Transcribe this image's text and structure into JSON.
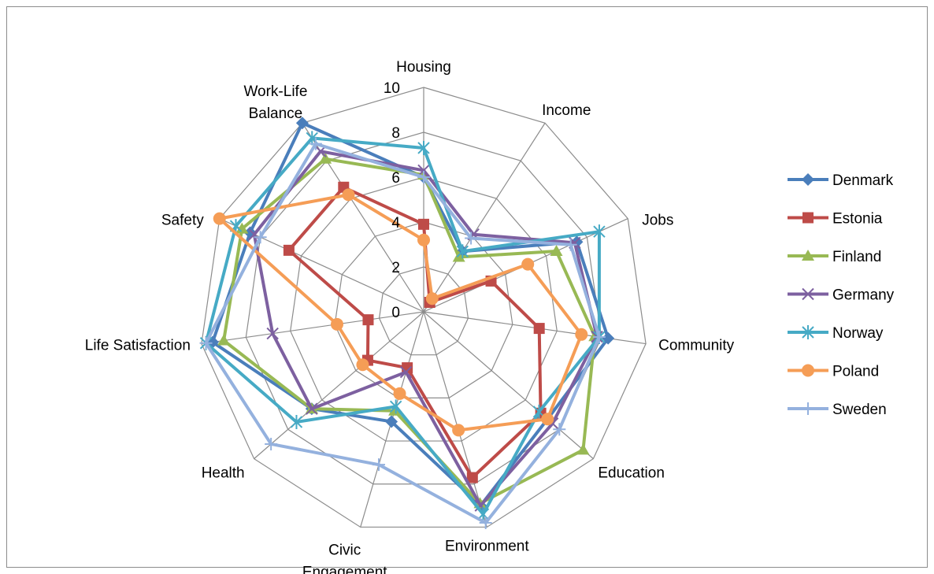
{
  "chart_data": {
    "type": "radar",
    "title": "",
    "categories": [
      "Housing",
      "Income",
      "Jobs",
      "Community",
      "Education",
      "Environment",
      "Civic Engagement",
      "Health",
      "Life Satisfaction",
      "Safety",
      "Work-Life Balance"
    ],
    "category_display": [
      [
        "Housing"
      ],
      [
        "Income"
      ],
      [
        "Jobs"
      ],
      [
        "Community"
      ],
      [
        "Education"
      ],
      [
        "Environment"
      ],
      [
        "Civic",
        "Engagement"
      ],
      [
        "Health"
      ],
      [
        "Life Satisfaction"
      ],
      [
        "Safety"
      ],
      [
        "Work-Life",
        "Balance"
      ]
    ],
    "rlim": [
      0,
      10
    ],
    "ticks": [
      "0",
      "2",
      "4",
      "6",
      "8",
      "10"
    ],
    "tick_values": [
      0,
      2,
      4,
      6,
      8,
      10
    ],
    "grid": true,
    "legend_position": "right",
    "series": [
      {
        "name": "Denmark",
        "color": "#4a7ebb",
        "marker": "diamond",
        "values": [
          6.0,
          3.2,
          7.5,
          8.3,
          7.3,
          9.0,
          5.1,
          6.6,
          9.5,
          8.5,
          10.0
        ]
      },
      {
        "name": "Estonia",
        "color": "#be4b48",
        "marker": "square",
        "values": [
          3.9,
          0.5,
          3.3,
          5.2,
          6.9,
          7.7,
          2.6,
          3.3,
          2.5,
          6.6,
          6.6
        ]
      },
      {
        "name": "Finland",
        "color": "#98b954",
        "marker": "triangle",
        "values": [
          6.1,
          2.9,
          6.5,
          7.7,
          9.4,
          8.9,
          4.6,
          6.6,
          9.0,
          8.9,
          8.1
        ]
      },
      {
        "name": "Germany",
        "color": "#7d60a0",
        "marker": "x",
        "values": [
          6.3,
          4.1,
          7.4,
          7.8,
          7.6,
          9.0,
          2.8,
          6.6,
          6.8,
          8.3,
          8.5
        ]
      },
      {
        "name": "Norway",
        "color": "#46aac5",
        "marker": "asterisk",
        "values": [
          7.3,
          3.2,
          8.6,
          7.9,
          6.8,
          9.4,
          4.4,
          7.5,
          9.8,
          9.2,
          9.2
        ]
      },
      {
        "name": "Poland",
        "color": "#f59d56",
        "marker": "circle",
        "values": [
          3.2,
          0.7,
          5.1,
          7.1,
          7.3,
          5.5,
          3.8,
          3.6,
          3.9,
          10.0,
          6.2
        ]
      },
      {
        "name": "Sweden",
        "color": "#94b1de",
        "marker": "plus",
        "values": [
          6.0,
          3.9,
          7.2,
          7.9,
          8.0,
          9.8,
          7.1,
          9.0,
          9.8,
          8.0,
          8.9
        ]
      }
    ]
  }
}
